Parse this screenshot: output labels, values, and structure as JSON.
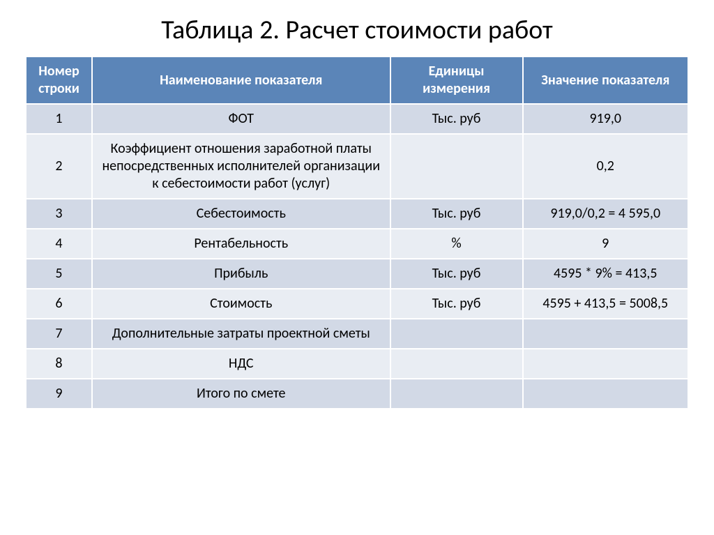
{
  "title": "Таблица 2. Расчет стоимости работ",
  "table": {
    "type": "table",
    "header_bg": "#5b85b8",
    "header_fg": "#ffffff",
    "row_odd_bg": "#d2d9e6",
    "row_even_bg": "#e9edf3",
    "border_color": "#ffffff",
    "cell_fontsize": 20,
    "header_fontsize": 20,
    "title_fontsize": 38,
    "columns": [
      {
        "label": "Номер строки",
        "width_pct": 10,
        "align": "center"
      },
      {
        "label": "Наименование показателя",
        "width_pct": 45,
        "align": "center"
      },
      {
        "label": "Единицы измерения",
        "width_pct": 20,
        "align": "center"
      },
      {
        "label": "Значение показателя",
        "width_pct": 25,
        "align": "center"
      }
    ],
    "rows": [
      {
        "num": "1",
        "name": "ФОТ",
        "unit": "Тыс.  руб",
        "value": "919,0"
      },
      {
        "num": "2",
        "name": "Коэффициент   отношения заработной платы непосредственных исполнителей организации к себестоимости работ (услуг)",
        "unit": "",
        "value": "0,2"
      },
      {
        "num": "3",
        "name": "Себестоимость",
        "unit": "Тыс.  руб",
        "value": "919,0/0,2 = 4 595,0"
      },
      {
        "num": "4",
        "name": "Рентабельность",
        "unit": "%",
        "value": "9"
      },
      {
        "num": "5",
        "name": "Прибыль",
        "unit": "Тыс.  руб",
        "value": "4595 * 9% = 413,5"
      },
      {
        "num": "6",
        "name": "Стоимость",
        "unit": "Тыс.  руб",
        "value": "4595 + 413,5 = 5008,5"
      },
      {
        "num": "7",
        "name": "Дополнительные затраты проектной сметы",
        "unit": "",
        "value": ""
      },
      {
        "num": "8",
        "name": "НДС",
        "unit": "",
        "value": ""
      },
      {
        "num": "9",
        "name": "Итого по смете",
        "unit": "",
        "value": ""
      }
    ]
  }
}
